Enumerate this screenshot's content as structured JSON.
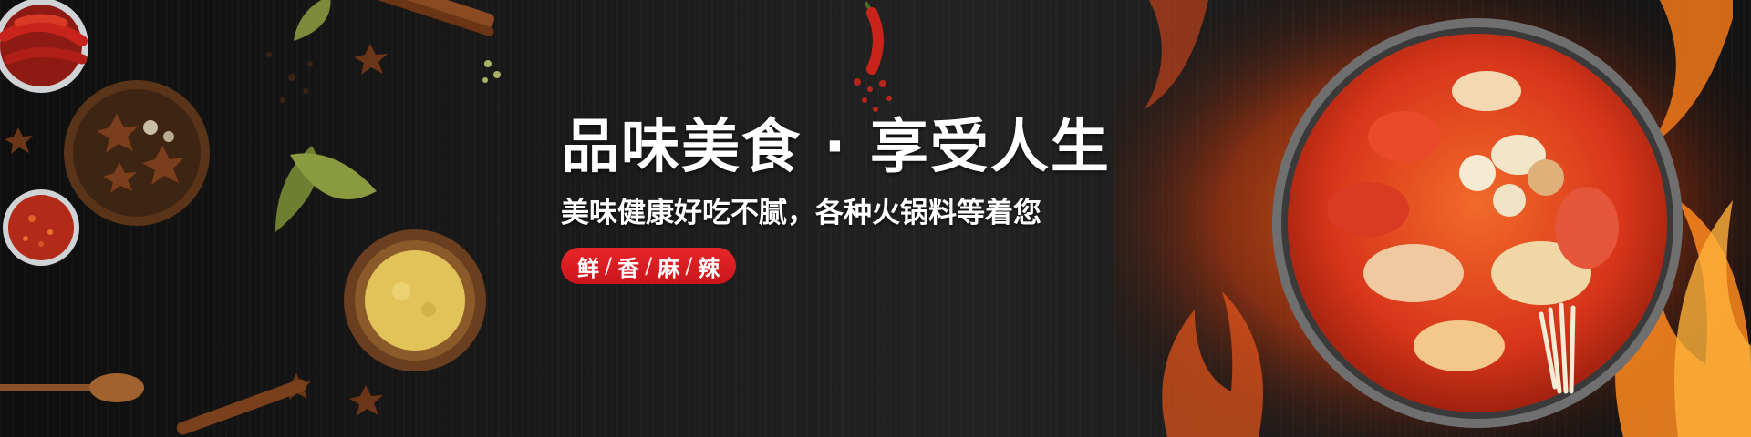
{
  "banner": {
    "headline": "品味美食 · 享受人生",
    "subline": "美味健康好吃不腻，各种火锅料等着您",
    "tags": [
      "鲜",
      "香",
      "麻",
      "辣"
    ],
    "tag_separator": "/",
    "colors": {
      "background": "#1c1b1b",
      "accent_red": "#e8262a",
      "text": "#ffffff"
    }
  },
  "decorations": {
    "left": [
      "dried-chili-bowl-icon",
      "star-anise-bowl-icon",
      "chili-flakes-bowl-icon",
      "curry-powder-bowl-icon",
      "bay-leaf-icon",
      "cinnamon-stick-icon",
      "wooden-spoon-icon",
      "red-chili-pepper-icon"
    ],
    "right": [
      "hotpot-bowl-icon",
      "flames-icon"
    ]
  }
}
